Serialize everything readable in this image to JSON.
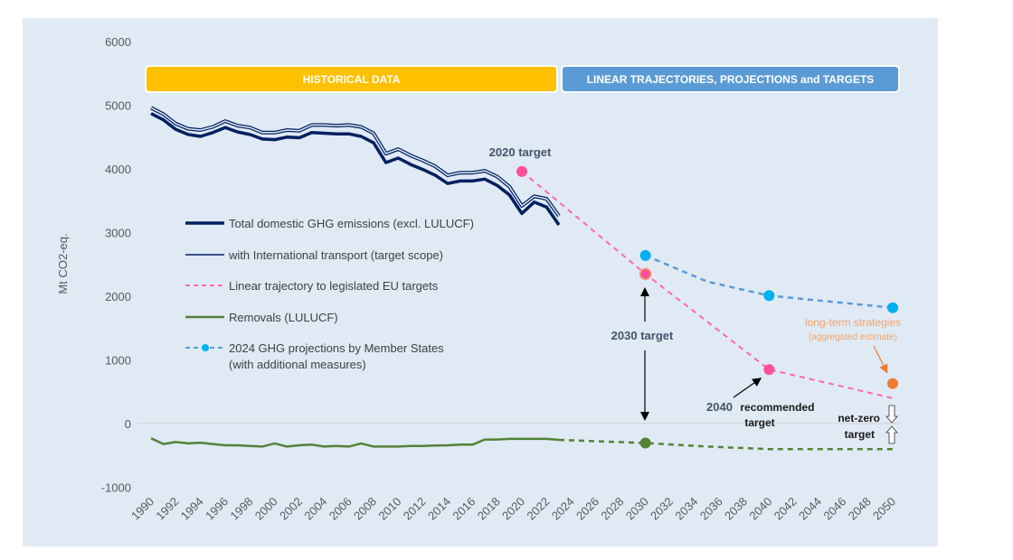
{
  "chart_data": {
    "type": "line",
    "title": "",
    "xlabel": "",
    "ylabel": "Mt CO2-eq.",
    "ylim": [
      -1000,
      6000
    ],
    "xlim": [
      1990,
      2050
    ],
    "y_ticks": [
      "6000",
      "5000",
      "4000",
      "3000",
      "2000",
      "1000",
      "0",
      "-1000"
    ],
    "y_tick_values": [
      6000,
      5000,
      4000,
      3000,
      2000,
      1000,
      0,
      -1000
    ],
    "x_ticks": [
      "1990",
      "1992",
      "1994",
      "1996",
      "1998",
      "2000",
      "2002",
      "2004",
      "2006",
      "2008",
      "2010",
      "2012",
      "2014",
      "2016",
      "2018",
      "2020",
      "2022",
      "2024",
      "2026",
      "2028",
      "2030",
      "2032",
      "2034",
      "2036",
      "2038",
      "2040",
      "2042",
      "2044",
      "2046",
      "2048",
      "2050"
    ],
    "grid": "zero-line only",
    "legend_position": "center-left",
    "banners": [
      {
        "label": "HISTORICAL DATA",
        "from": 1990,
        "to": 2023,
        "color": "#ffc000"
      },
      {
        "label": "LINEAR TRAJECTORIES, PROJECTIONS and TARGETS",
        "from": 2023.5,
        "to": 2050.5,
        "color": "#5b9bd5"
      }
    ],
    "series": [
      {
        "name": "Total domestic GHG emissions (excl. LULUCF)",
        "style": "solid-thick",
        "color": "#002060",
        "x": [
          1990,
          1991,
          1992,
          1993,
          1994,
          1995,
          1996,
          1997,
          1998,
          1999,
          2000,
          2001,
          2002,
          2003,
          2004,
          2005,
          2006,
          2007,
          2008,
          2009,
          2010,
          2011,
          2012,
          2013,
          2014,
          2015,
          2016,
          2017,
          2018,
          2019,
          2020,
          2021,
          2022,
          2023
        ],
        "values": [
          4870,
          4770,
          4620,
          4540,
          4510,
          4570,
          4650,
          4580,
          4540,
          4470,
          4460,
          4500,
          4490,
          4570,
          4560,
          4550,
          4550,
          4510,
          4410,
          4100,
          4170,
          4070,
          3990,
          3900,
          3770,
          3810,
          3810,
          3840,
          3740,
          3590,
          3300,
          3480,
          3400,
          3120
        ]
      },
      {
        "name": "with International transport (target scope)",
        "style": "solid-thin",
        "color": "#002060",
        "x": [
          1990,
          1991,
          1992,
          1993,
          1994,
          1995,
          1996,
          1997,
          1998,
          1999,
          2000,
          2001,
          2002,
          2003,
          2004,
          2005,
          2006,
          2007,
          2008,
          2009,
          2010,
          2011,
          2012,
          2013,
          2014,
          2015,
          2016,
          2017,
          2018,
          2019,
          2020,
          2021,
          2022,
          2023
        ],
        "values": [
          4960,
          4860,
          4710,
          4630,
          4610,
          4660,
          4750,
          4680,
          4650,
          4570,
          4570,
          4610,
          4600,
          4690,
          4690,
          4680,
          4690,
          4660,
          4560,
          4240,
          4310,
          4210,
          4130,
          4040,
          3900,
          3940,
          3940,
          3970,
          3880,
          3720,
          3420,
          3570,
          3530,
          3260
        ]
      },
      {
        "name": "Linear trajectory to legislated EU targets",
        "style": "dashed",
        "color": "#ff66b3",
        "x": [
          2020,
          2030,
          2040,
          2050
        ],
        "values": [
          3960,
          2350,
          850,
          400
        ]
      },
      {
        "name": "Removals (LULUCF)",
        "style": "solid-then-dashed",
        "color": "#548235",
        "x": [
          1990,
          1991,
          1992,
          1993,
          1994,
          1995,
          1996,
          1997,
          1998,
          1999,
          2000,
          2001,
          2002,
          2003,
          2004,
          2005,
          2006,
          2007,
          2008,
          2009,
          2010,
          2011,
          2012,
          2013,
          2014,
          2015,
          2016,
          2017,
          2018,
          2019,
          2020,
          2021,
          2022,
          2023,
          2030,
          2035,
          2040,
          2050
        ],
        "values": [
          -230,
          -320,
          -290,
          -310,
          -300,
          -320,
          -340,
          -340,
          -350,
          -360,
          -310,
          -360,
          -340,
          -330,
          -360,
          -350,
          -360,
          -310,
          -360,
          -360,
          -360,
          -350,
          -350,
          -345,
          -340,
          -330,
          -330,
          -250,
          -250,
          -240,
          -240,
          -240,
          -240,
          -255,
          -305,
          -360,
          -400,
          -400
        ],
        "dashed_from": 2023
      },
      {
        "name": "2024 GHG projections by Member States\n(with additional measures)",
        "legend_lines": [
          "2024 GHG projections by Member States",
          "(with additional measures)"
        ],
        "style": "dashed-markers",
        "color": "#5b9bd5",
        "marker_color": "#00b0f0",
        "x": [
          2030,
          2035,
          2040,
          2050
        ],
        "values": [
          2640,
          2230,
          2010,
          1820
        ],
        "marker_at": [
          2030,
          2040,
          2050
        ]
      }
    ],
    "points": [
      {
        "name": "2020 target",
        "x": 2020,
        "value": 3960,
        "color": "#ff4f9a"
      },
      {
        "name": "2030 target",
        "x": 2030,
        "value": 2350,
        "color": "#ff4f9a",
        "outline": "#f4a36a"
      },
      {
        "name": "2040 recommended target",
        "x": 2040,
        "value": 850,
        "color": "#ff4f9a"
      },
      {
        "name": "long-term strategies (aggregated estimate)",
        "x": 2050,
        "value": 630,
        "color": "#ed7d31"
      },
      {
        "name": "Removals 2030",
        "x": 2030,
        "value": -305,
        "color": "#548235"
      }
    ],
    "annotations": {
      "target_2020": "2020 target",
      "target_2030": "2030 target",
      "target_2040_year": "2040",
      "target_2040_rest": "recommended",
      "target_2040_line2": "target",
      "lts_line1": "long-term strategies",
      "lts_line2": "(aggregated estimate)",
      "netzero_line1": "net-zero",
      "netzero_line2": "target"
    },
    "legend": [
      "Total domestic GHG emissions (excl. LULUCF)",
      "with International transport (target scope)",
      "Linear trajectory to legislated EU targets",
      "Removals (LULUCF)",
      "2024 GHG projections by Member States",
      "(with additional measures)"
    ]
  }
}
